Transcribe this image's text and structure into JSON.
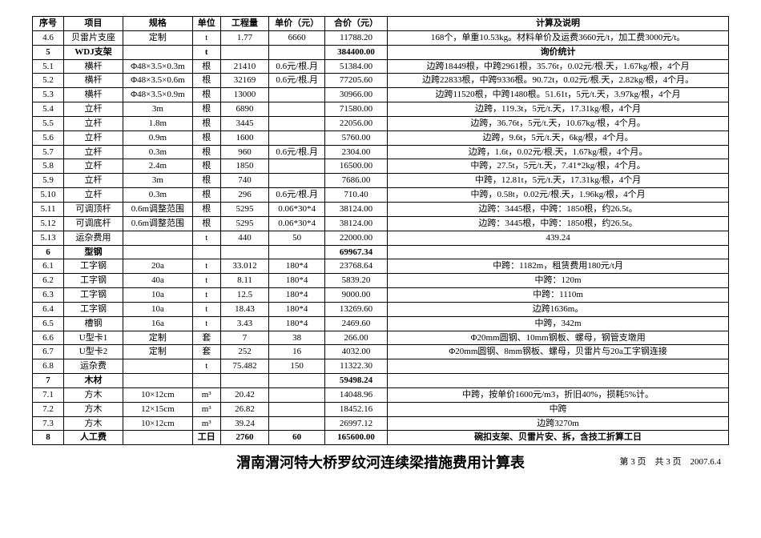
{
  "headers": [
    "序号",
    "项目",
    "规格",
    "单位",
    "工程量",
    "单价（元）",
    "合价（元）",
    "计算及说明"
  ],
  "rows": [
    {
      "no": "4.6",
      "item": "贝雷片支座",
      "spec": "定制",
      "unit": "t",
      "qty": "1.77",
      "price": "6660",
      "total": "11788.20",
      "calc": "168个，单重10.53kg。材料单价及运费3660元/t，加工费3000元/t。",
      "bold": false
    },
    {
      "no": "5",
      "item": "WDJ支架",
      "spec": "",
      "unit": "t",
      "qty": "",
      "price": "",
      "total": "384400.00",
      "calc": "询价统计",
      "bold": true
    },
    {
      "no": "5.1",
      "item": "横杆",
      "spec": "Φ48×3.5×0.3m",
      "unit": "根",
      "qty": "21410",
      "price": "0.6元/根.月",
      "total": "51384.00",
      "calc": "边跨18449根，中跨2961根，35.76t，0.02元/根.天，1.67kg/根，4个月",
      "bold": false
    },
    {
      "no": "5.2",
      "item": "横杆",
      "spec": "Φ48×3.5×0.6m",
      "unit": "根",
      "qty": "32169",
      "price": "0.6元/根.月",
      "total": "77205.60",
      "calc": "边跨22833根，中跨9336根。90.72t，0.02元/根.天，2.82kg/根，4个月。",
      "bold": false
    },
    {
      "no": "5.3",
      "item": "横杆",
      "spec": "Φ48×3.5×0.9m",
      "unit": "根",
      "qty": "13000",
      "price": "",
      "total": "30966.00",
      "calc": "边跨11520根，中跨1480根。51.61t，5元/t.天，3.97kg/根，4个月",
      "bold": false
    },
    {
      "no": "5.4",
      "item": "立杆",
      "spec": "3m",
      "unit": "根",
      "qty": "6890",
      "price": "",
      "total": "71580.00",
      "calc": "边跨，119.3t，5元/t.天，17.31kg/根，4个月",
      "bold": false
    },
    {
      "no": "5.5",
      "item": "立杆",
      "spec": "1.8m",
      "unit": "根",
      "qty": "3445",
      "price": "",
      "total": "22056.00",
      "calc": "边跨，36.76t，5元/t.天，10.67kg/根，4个月。",
      "bold": false
    },
    {
      "no": "5.6",
      "item": "立杆",
      "spec": "0.9m",
      "unit": "根",
      "qty": "1600",
      "price": "",
      "total": "5760.00",
      "calc": "边跨，9.6t，5元/t.天，6kg/根，4个月。",
      "bold": false
    },
    {
      "no": "5.7",
      "item": "立杆",
      "spec": "0.3m",
      "unit": "根",
      "qty": "960",
      "price": "0.6元/根.月",
      "total": "2304.00",
      "calc": "边跨，1.6t，0.02元/根.天，1.67kg/根，4个月。",
      "bold": false
    },
    {
      "no": "5.8",
      "item": "立杆",
      "spec": "2.4m",
      "unit": "根",
      "qty": "1850",
      "price": "",
      "total": "16500.00",
      "calc": "中跨，27.5t，5元/t.天，7.41*2kg/根，4个月。",
      "bold": false
    },
    {
      "no": "5.9",
      "item": "立杆",
      "spec": "3m",
      "unit": "根",
      "qty": "740",
      "price": "",
      "total": "7686.00",
      "calc": "中跨，12.81t，5元/t.天，17.31kg/根，4个月",
      "bold": false
    },
    {
      "no": "5.10",
      "item": "立杆",
      "spec": "0.3m",
      "unit": "根",
      "qty": "296",
      "price": "0.6元/根.月",
      "total": "710.40",
      "calc": "中跨，0.58t，0.02元/根.天，1.96kg/根，4个月",
      "bold": false
    },
    {
      "no": "5.11",
      "item": "可调顶杆",
      "spec": "0.6m调整范围",
      "unit": "根",
      "qty": "5295",
      "price": "0.06*30*4",
      "total": "38124.00",
      "calc": "边跨：3445根，中跨：1850根，约26.5t。",
      "bold": false
    },
    {
      "no": "5.12",
      "item": "可调底杆",
      "spec": "0.6m调整范围",
      "unit": "根",
      "qty": "5295",
      "price": "0.06*30*4",
      "total": "38124.00",
      "calc": "边跨：3445根，中跨：1850根，约26.5t。",
      "bold": false
    },
    {
      "no": "5.13",
      "item": "运杂费用",
      "spec": "",
      "unit": "t",
      "qty": "440",
      "price": "50",
      "total": "22000.00",
      "calc": "439.24",
      "bold": false
    },
    {
      "no": "6",
      "item": "型钢",
      "spec": "",
      "unit": "",
      "qty": "",
      "price": "",
      "total": "69967.34",
      "calc": "",
      "bold": true
    },
    {
      "no": "6.1",
      "item": "工字钢",
      "spec": "20a",
      "unit": "t",
      "qty": "33.012",
      "price": "180*4",
      "total": "23768.64",
      "calc": "中跨：1182m，租赁费用180元/t月",
      "bold": false
    },
    {
      "no": "6.2",
      "item": "工字钢",
      "spec": "40a",
      "unit": "t",
      "qty": "8.11",
      "price": "180*4",
      "total": "5839.20",
      "calc": "中跨：120m",
      "bold": false
    },
    {
      "no": "6.3",
      "item": "工字钢",
      "spec": "10a",
      "unit": "t",
      "qty": "12.5",
      "price": "180*4",
      "total": "9000.00",
      "calc": "中跨：1110m",
      "bold": false
    },
    {
      "no": "6.4",
      "item": "工字钢",
      "spec": "10a",
      "unit": "t",
      "qty": "18.43",
      "price": "180*4",
      "total": "13269.60",
      "calc": "边跨1636m。",
      "bold": false
    },
    {
      "no": "6.5",
      "item": "槽钢",
      "spec": "16a",
      "unit": "t",
      "qty": "3.43",
      "price": "180*4",
      "total": "2469.60",
      "calc": "中跨，342m",
      "bold": false
    },
    {
      "no": "6.6",
      "item": "U型卡1",
      "spec": "定制",
      "unit": "套",
      "qty": "7",
      "price": "38",
      "total": "266.00",
      "calc": "Φ20mm圆钢、10mm钢板、螺母，钢管支墩用",
      "bold": false
    },
    {
      "no": "6.7",
      "item": "U型卡2",
      "spec": "定制",
      "unit": "套",
      "qty": "252",
      "price": "16",
      "total": "4032.00",
      "calc": "Φ20mm圆钢、8mm钢板、螺母，贝雷片与20a工字钢连接",
      "bold": false
    },
    {
      "no": "6.8",
      "item": "运杂费",
      "spec": "",
      "unit": "t",
      "qty": "75.482",
      "price": "150",
      "total": "11322.30",
      "calc": "",
      "bold": false
    },
    {
      "no": "7",
      "item": "木材",
      "spec": "",
      "unit": "",
      "qty": "",
      "price": "",
      "total": "59498.24",
      "calc": "",
      "bold": true
    },
    {
      "no": "7.1",
      "item": "方木",
      "spec": "10×12cm",
      "unit": "m³",
      "qty": "20.42",
      "price": "",
      "total": "14048.96",
      "calc": "中跨，按单价1600元/m3，折旧40%，损耗5%计。",
      "bold": false
    },
    {
      "no": "7.2",
      "item": "方木",
      "spec": "12×15cm",
      "unit": "m³",
      "qty": "26.82",
      "price": "",
      "total": "18452.16",
      "calc": "中跨",
      "bold": false
    },
    {
      "no": "7.3",
      "item": "方木",
      "spec": "10×12cm",
      "unit": "m³",
      "qty": "39.24",
      "price": "",
      "total": "26997.12",
      "calc": "边跨3270m",
      "bold": false
    },
    {
      "no": "8",
      "item": "人工费",
      "spec": "",
      "unit": "工日",
      "qty": "2760",
      "price": "60",
      "total": "165600.00",
      "calc": "碗扣支架、贝雷片安、拆，含技工折算工日",
      "bold": true
    }
  ],
  "title": "渭南渭河特大桥罗纹河连续梁措施费用计算表",
  "pageInfo": "第 3 页　共 3 页　2007.6.4"
}
